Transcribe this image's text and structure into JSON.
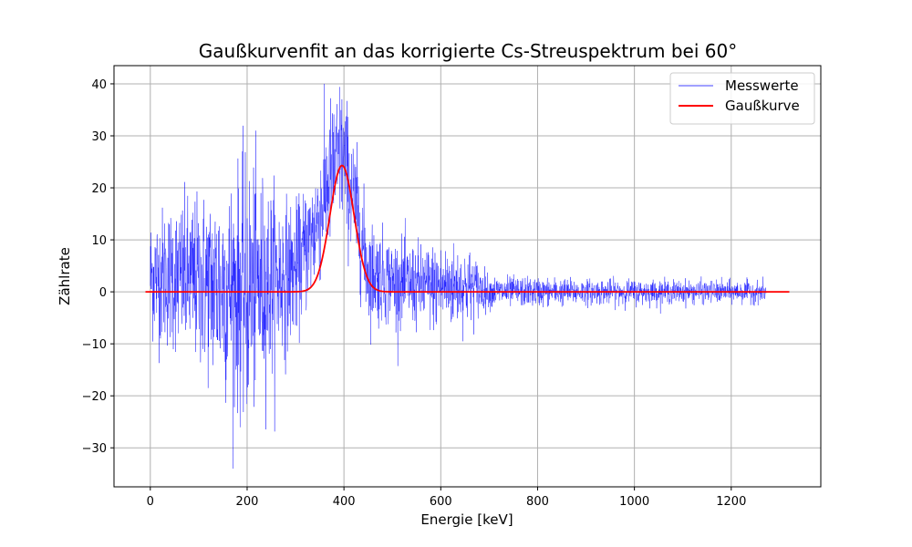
{
  "chart_data": {
    "type": "line",
    "title": "Gaußkurvenfit an das korrigierte Cs-Streuspektrum bei 60°",
    "xlabel": "Energie [keV]",
    "ylabel": "Zählrate",
    "xlim": [
      -75,
      1385
    ],
    "ylim": [
      -37.5,
      43.5
    ],
    "x_ticks": [
      0,
      200,
      400,
      600,
      800,
      1000,
      1200
    ],
    "y_ticks": [
      -30,
      -20,
      -10,
      0,
      10,
      20,
      30,
      40
    ],
    "x_tick_labels": [
      "0",
      "200",
      "400",
      "600",
      "800",
      "1000",
      "1200"
    ],
    "y_tick_labels": [
      "−30",
      "−20",
      "−10",
      "0",
      "10",
      "20",
      "30",
      "40"
    ],
    "grid": true,
    "legend_position": "top-right",
    "series": [
      {
        "name": "Messwerte",
        "color": "#0000ff",
        "x_range": [
          0,
          1272
        ],
        "envelope": [
          {
            "x": 0,
            "mean": 3,
            "spread": 6
          },
          {
            "x": 50,
            "mean": 3,
            "spread": 7
          },
          {
            "x": 100,
            "mean": 2,
            "spread": 8
          },
          {
            "x": 150,
            "mean": 1,
            "spread": 10
          },
          {
            "x": 200,
            "mean": 0,
            "spread": 12
          },
          {
            "x": 250,
            "mean": 2,
            "spread": 9
          },
          {
            "x": 300,
            "mean": 4,
            "spread": 6
          },
          {
            "x": 340,
            "mean": 12,
            "spread": 6
          },
          {
            "x": 370,
            "mean": 22,
            "spread": 7
          },
          {
            "x": 395,
            "mean": 27,
            "spread": 7
          },
          {
            "x": 420,
            "mean": 18,
            "spread": 6
          },
          {
            "x": 450,
            "mean": 4,
            "spread": 5
          },
          {
            "x": 500,
            "mean": 2,
            "spread": 4
          },
          {
            "x": 560,
            "mean": 1,
            "spread": 4
          },
          {
            "x": 620,
            "mean": 1,
            "spread": 4
          },
          {
            "x": 660,
            "mean": 1,
            "spread": 3.5
          },
          {
            "x": 700,
            "mean": 0,
            "spread": 1.5
          },
          {
            "x": 900,
            "mean": 0,
            "spread": 1.2
          },
          {
            "x": 1272,
            "mean": 0,
            "spread": 1
          }
        ]
      },
      {
        "name": "Gaußkurve",
        "color": "#ff0000",
        "model": "gaussian",
        "amplitude": 24.3,
        "mu": 396,
        "sigma": 25,
        "offset": 0,
        "x_range": [
          -10,
          1320
        ]
      }
    ]
  }
}
